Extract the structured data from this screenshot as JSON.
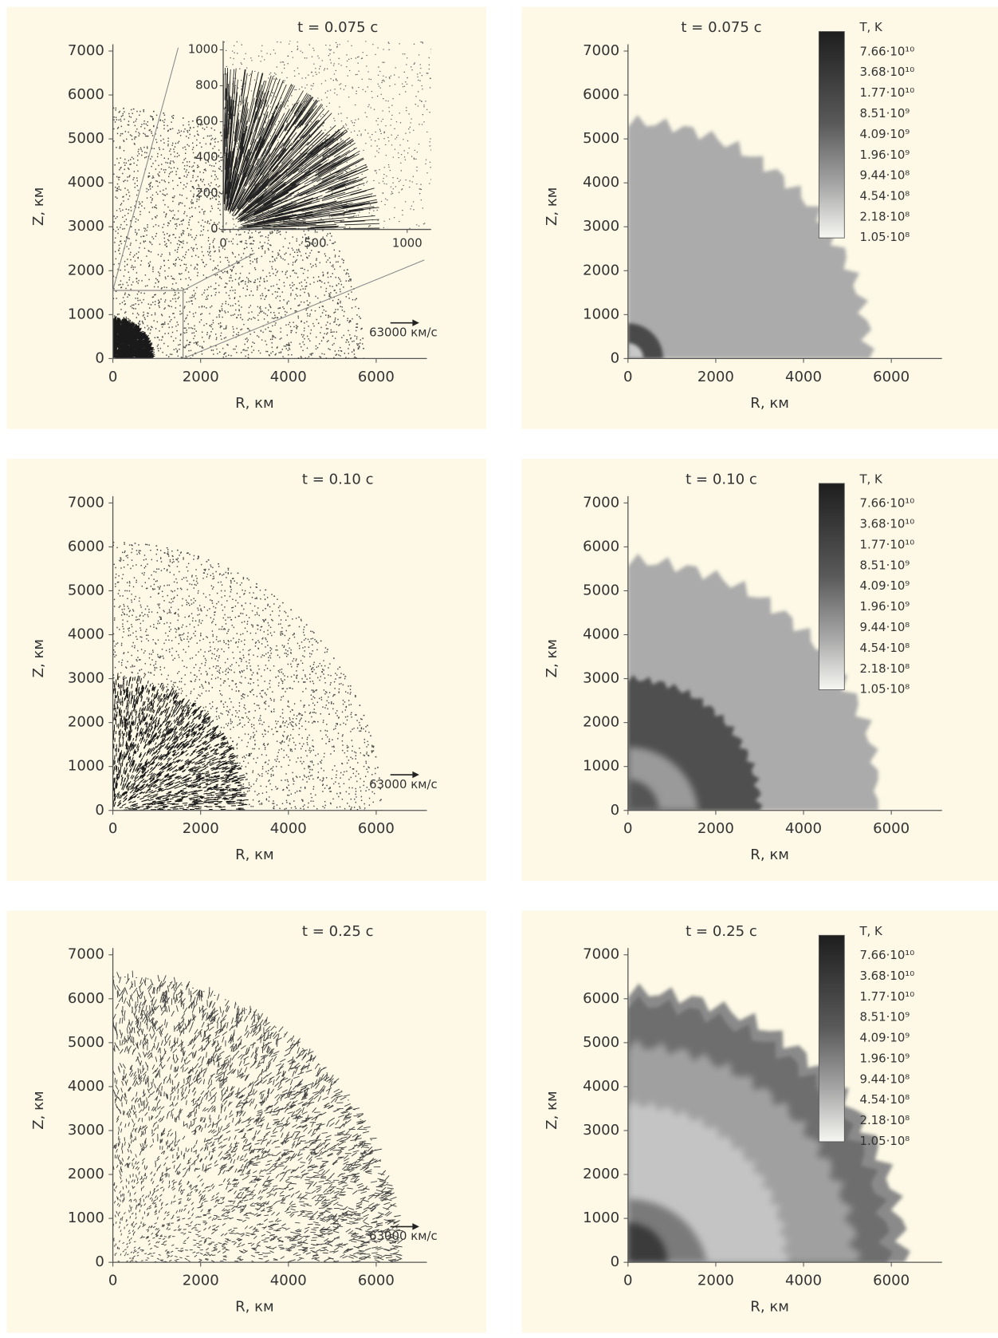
{
  "chart_data": [
    {
      "type": "vector-field",
      "title": "t = 0.075 с",
      "xlabel": "R, км",
      "ylabel": "Z, км",
      "xlim": [
        0,
        7000
      ],
      "ylim": [
        0,
        7000
      ],
      "xticks": [
        0,
        2000,
        4000,
        6000
      ],
      "yticks": [
        0,
        1000,
        2000,
        3000,
        4000,
        5000,
        6000,
        7000
      ],
      "annotation": "63000 км/с",
      "inset": {
        "xlim": [
          0,
          1130
        ],
        "ylim": [
          0,
          1050
        ],
        "xticks": [
          0,
          500,
          1000
        ],
        "yticks": [
          0,
          200,
          400,
          600,
          800,
          1000
        ]
      }
    },
    {
      "type": "heatmap",
      "title": "t = 0.075 с",
      "xlabel": "R, км",
      "ylabel": "Z, км",
      "xlim": [
        0,
        7000
      ],
      "ylim": [
        0,
        7000
      ],
      "xticks": [
        0,
        2000,
        4000,
        6000
      ],
      "yticks": [
        0,
        1000,
        2000,
        3000,
        4000,
        5000,
        6000,
        7000
      ],
      "colorbar": {
        "title": "T, K",
        "scale": "log",
        "lim": [
          105000000,
          159000000000
        ],
        "ticks": [
          {
            "value": 76600000000,
            "label": "7.66·10¹⁰"
          },
          {
            "value": 36800000000,
            "label": "3.68·10¹⁰"
          },
          {
            "value": 17700000000,
            "label": "1.77·10¹⁰"
          },
          {
            "value": 8510000000,
            "label": "8.51·10⁹"
          },
          {
            "value": 4090000000,
            "label": "4.09·10⁹"
          },
          {
            "value": 1960000000,
            "label": "1.96·10⁹"
          },
          {
            "value": 944000000,
            "label": "9.44·10⁸"
          },
          {
            "value": 454000000,
            "label": "4.54·10⁸"
          },
          {
            "value": 218000000,
            "label": "2.18·10⁸"
          },
          {
            "value": 105000000,
            "label": "1.05·10⁸"
          }
        ]
      }
    },
    {
      "type": "vector-field",
      "title": "t = 0.10 с",
      "xlabel": "R, км",
      "ylabel": "Z, км",
      "xlim": [
        0,
        7000
      ],
      "ylim": [
        0,
        7000
      ],
      "xticks": [
        0,
        2000,
        4000,
        6000
      ],
      "yticks": [
        0,
        1000,
        2000,
        3000,
        4000,
        5000,
        6000,
        7000
      ],
      "annotation": "63000 км/с"
    },
    {
      "type": "heatmap",
      "title": "t = 0.10 с",
      "xlabel": "R, км",
      "ylabel": "Z, км",
      "xlim": [
        0,
        7000
      ],
      "ylim": [
        0,
        7000
      ],
      "xticks": [
        0,
        2000,
        4000,
        6000
      ],
      "yticks": [
        0,
        1000,
        2000,
        3000,
        4000,
        5000,
        6000,
        7000
      ],
      "colorbar": {
        "title": "T, K",
        "scale": "log",
        "lim": [
          105000000,
          159000000000
        ],
        "ticks": [
          {
            "value": 76600000000,
            "label": "7.66·10¹⁰"
          },
          {
            "value": 36800000000,
            "label": "3.68·10¹⁰"
          },
          {
            "value": 17700000000,
            "label": "1.77·10¹⁰"
          },
          {
            "value": 8510000000,
            "label": "8.51·10⁹"
          },
          {
            "value": 4090000000,
            "label": "4.09·10⁹"
          },
          {
            "value": 1960000000,
            "label": "1.96·10⁹"
          },
          {
            "value": 944000000,
            "label": "9.44·10⁸"
          },
          {
            "value": 454000000,
            "label": "4.54·10⁸"
          },
          {
            "value": 218000000,
            "label": "2.18·10⁸"
          },
          {
            "value": 105000000,
            "label": "1.05·10⁸"
          }
        ]
      }
    },
    {
      "type": "vector-field",
      "title": "t = 0.25 с",
      "xlabel": "R, км",
      "ylabel": "Z, км",
      "xlim": [
        0,
        7000
      ],
      "ylim": [
        0,
        7000
      ],
      "xticks": [
        0,
        2000,
        4000,
        6000
      ],
      "yticks": [
        0,
        1000,
        2000,
        3000,
        4000,
        5000,
        6000,
        7000
      ],
      "annotation": "63000 км/с"
    },
    {
      "type": "heatmap",
      "title": "t = 0.25 с",
      "xlabel": "R, км",
      "ylabel": "Z, км",
      "xlim": [
        0,
        7000
      ],
      "ylim": [
        0,
        7000
      ],
      "xticks": [
        0,
        2000,
        4000,
        6000
      ],
      "yticks": [
        0,
        1000,
        2000,
        3000,
        4000,
        5000,
        6000,
        7000
      ],
      "colorbar": {
        "title": "T, K",
        "scale": "log",
        "lim": [
          105000000,
          159000000000
        ],
        "ticks": [
          {
            "value": 76600000000,
            "label": "7.66·10¹⁰"
          },
          {
            "value": 36800000000,
            "label": "3.68·10¹⁰"
          },
          {
            "value": 17700000000,
            "label": "1.77·10¹⁰"
          },
          {
            "value": 8510000000,
            "label": "8.51·10⁹"
          },
          {
            "value": 4090000000,
            "label": "4.09·10⁹"
          },
          {
            "value": 1960000000,
            "label": "1.96·10⁹"
          },
          {
            "value": 944000000,
            "label": "9.44·10⁸"
          },
          {
            "value": 454000000,
            "label": "4.54·10⁸"
          },
          {
            "value": 218000000,
            "label": "2.18·10⁸"
          },
          {
            "value": 105000000,
            "label": "1.05·10⁸"
          }
        ]
      }
    }
  ]
}
